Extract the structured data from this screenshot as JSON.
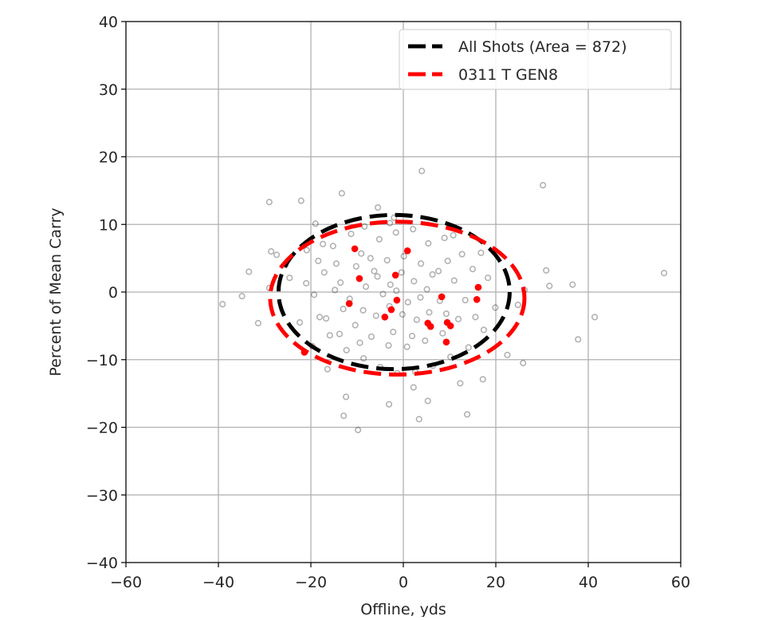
{
  "chart_data": {
    "type": "scatter",
    "title": "",
    "xlabel": "Offline, yds",
    "ylabel": "Percent of Mean Carry",
    "xlim": [
      -60,
      60
    ],
    "ylim": [
      -40,
      40
    ],
    "xticks": [
      -60,
      -40,
      -20,
      0,
      20,
      40,
      60
    ],
    "yticks": [
      -40,
      -30,
      -20,
      -10,
      0,
      10,
      20,
      30,
      40
    ],
    "xtick_labels": [
      "−60",
      "−40",
      "−20",
      "0",
      "20",
      "40",
      "60"
    ],
    "ytick_labels": [
      "−40",
      "−30",
      "−20",
      "−10",
      "0",
      "10",
      "20",
      "30",
      "40"
    ],
    "grid": true,
    "legend_position": "upper right",
    "legend": [
      {
        "label": "All Shots (Area = 872)",
        "color": "#000000",
        "style": "dashed"
      },
      {
        "label": "0311 T GEN8",
        "color": "#ff0000",
        "style": "dashed"
      }
    ],
    "ellipses": [
      {
        "name": "All Shots",
        "color": "#000000",
        "center": [
          -2.0,
          0.0
        ],
        "half_width": 25.0,
        "half_height": 11.4,
        "area": 872
      },
      {
        "name": "0311 T GEN8",
        "color": "#ff0000",
        "center": [
          -1.3,
          -0.9
        ],
        "half_width": 27.5,
        "half_height": 11.3
      }
    ],
    "series": [
      {
        "name": "All Shots",
        "marker": "hollow-circle",
        "color": "#808080",
        "points": [
          [
            4.0,
            17.9
          ],
          [
            30.2,
            15.8
          ],
          [
            -29.0,
            13.3
          ],
          [
            -22.1,
            13.5
          ],
          [
            -13.3,
            14.6
          ],
          [
            56.4,
            2.8
          ],
          [
            -39.1,
            -1.8
          ],
          [
            41.4,
            -3.7
          ],
          [
            37.8,
            -7.0
          ],
          [
            -9.8,
            -20.4
          ],
          [
            -12.9,
            -18.3
          ],
          [
            3.4,
            -18.8
          ],
          [
            13.8,
            -18.1
          ],
          [
            30.9,
            3.2
          ],
          [
            36.6,
            1.1
          ],
          [
            31.6,
            0.9
          ],
          [
            -33.4,
            3.0
          ],
          [
            -34.9,
            -0.6
          ],
          [
            -31.4,
            -4.6
          ],
          [
            -29.0,
            0.6
          ],
          [
            -28.6,
            6.0
          ],
          [
            -27.4,
            5.5
          ],
          [
            -25.5,
            4.0
          ],
          [
            -19.0,
            10.1
          ],
          [
            -12.4,
            -15.5
          ],
          [
            -5.5,
            12.5
          ],
          [
            -2.0,
            11.0
          ],
          [
            2.2,
            -14.1
          ],
          [
            5.3,
            -16.1
          ],
          [
            -3.1,
            -16.6
          ],
          [
            22.5,
            -9.3
          ],
          [
            25.9,
            -10.5
          ],
          [
            24.8,
            -1.9
          ],
          [
            26.2,
            0.3
          ],
          [
            17.2,
            -12.9
          ],
          [
            12.3,
            -13.5
          ],
          [
            -16.4,
            -11.4
          ],
          [
            -19.7,
            -8.0
          ],
          [
            -22.4,
            -4.5
          ],
          [
            -24.6,
            2.1
          ],
          [
            -20.9,
            6.2
          ],
          [
            -17.4,
            7.1
          ],
          [
            -14.5,
            4.2
          ],
          [
            -11.3,
            8.6
          ],
          [
            -8.4,
            9.7
          ],
          [
            -5.2,
            7.8
          ],
          [
            -1.6,
            8.8
          ],
          [
            2.1,
            9.3
          ],
          [
            5.4,
            7.2
          ],
          [
            8.9,
            8.0
          ],
          [
            12.7,
            5.6
          ],
          [
            15.0,
            3.4
          ],
          [
            18.3,
            2.1
          ],
          [
            19.9,
            -2.3
          ],
          [
            17.4,
            -5.6
          ],
          [
            14.1,
            -8.2
          ],
          [
            10.2,
            -9.6
          ],
          [
            6.4,
            -10.9
          ],
          [
            2.6,
            -11.8
          ],
          [
            -1.3,
            -12.0
          ],
          [
            -5.0,
            -11.1
          ],
          [
            -8.6,
            -9.8
          ],
          [
            -12.3,
            -8.6
          ],
          [
            -15.9,
            -6.4
          ],
          [
            -18.1,
            -3.7
          ],
          [
            -19.3,
            -0.4
          ],
          [
            -17.1,
            2.9
          ],
          [
            -13.6,
            1.4
          ],
          [
            -10.2,
            3.8
          ],
          [
            -7.1,
            5.0
          ],
          [
            -3.5,
            4.7
          ],
          [
            0.1,
            5.3
          ],
          [
            3.8,
            4.2
          ],
          [
            7.6,
            3.1
          ],
          [
            11.0,
            1.7
          ],
          [
            13.4,
            -1.2
          ],
          [
            11.9,
            -4.0
          ],
          [
            8.5,
            -6.1
          ],
          [
            4.7,
            -7.2
          ],
          [
            0.8,
            -8.1
          ],
          [
            -3.2,
            -7.9
          ],
          [
            -6.9,
            -6.6
          ],
          [
            -10.4,
            -4.9
          ],
          [
            -13.0,
            -2.5
          ],
          [
            -14.8,
            0.3
          ],
          [
            -11.6,
            -1.0
          ],
          [
            -8.1,
            0.8
          ],
          [
            -5.6,
            2.3
          ],
          [
            -2.8,
            1.1
          ],
          [
            -0.4,
            2.9
          ],
          [
            2.3,
            1.6
          ],
          [
            5.1,
            0.4
          ],
          [
            7.9,
            -1.3
          ],
          [
            5.6,
            -3.0
          ],
          [
            2.9,
            -4.1
          ],
          [
            -0.2,
            -3.3
          ],
          [
            -3.0,
            -2.1
          ],
          [
            -5.9,
            -3.5
          ],
          [
            -8.7,
            -2.7
          ],
          [
            -4.4,
            -0.3
          ],
          [
            -1.5,
            0.2
          ],
          [
            1.0,
            -1.5
          ],
          [
            3.7,
            -0.8
          ],
          [
            6.3,
            2.6
          ],
          [
            9.6,
            4.6
          ],
          [
            -6.3,
            3.1
          ],
          [
            -9.1,
            5.7
          ],
          [
            -15.2,
            6.8
          ],
          [
            -18.4,
            4.6
          ],
          [
            -21.0,
            1.3
          ],
          [
            -16.7,
            -3.9
          ],
          [
            -13.8,
            -6.2
          ],
          [
            -9.4,
            -7.5
          ],
          [
            -2.2,
            -5.9
          ],
          [
            1.9,
            -6.5
          ],
          [
            9.3,
            -3.2
          ],
          [
            15.6,
            -3.7
          ],
          [
            16.8,
            5.8
          ],
          [
            10.8,
            8.4
          ],
          [
            -2.9,
            10.2
          ]
        ]
      },
      {
        "name": "0311 T GEN8",
        "marker": "filled-circle",
        "color": "#ff0000",
        "points": [
          [
            -10.5,
            6.4
          ],
          [
            0.9,
            6.1
          ],
          [
            -1.7,
            2.5
          ],
          [
            -9.5,
            2.0
          ],
          [
            -1.4,
            -1.2
          ],
          [
            -11.7,
            -1.7
          ],
          [
            -2.6,
            -2.6
          ],
          [
            -4.0,
            -3.7
          ],
          [
            8.3,
            -0.7
          ],
          [
            16.2,
            0.7
          ],
          [
            15.9,
            -1.1
          ],
          [
            5.3,
            -4.6
          ],
          [
            5.9,
            -5.1
          ],
          [
            9.5,
            -4.5
          ],
          [
            10.2,
            -5.0
          ],
          [
            9.3,
            -7.4
          ],
          [
            -21.4,
            -8.9
          ]
        ]
      }
    ]
  }
}
